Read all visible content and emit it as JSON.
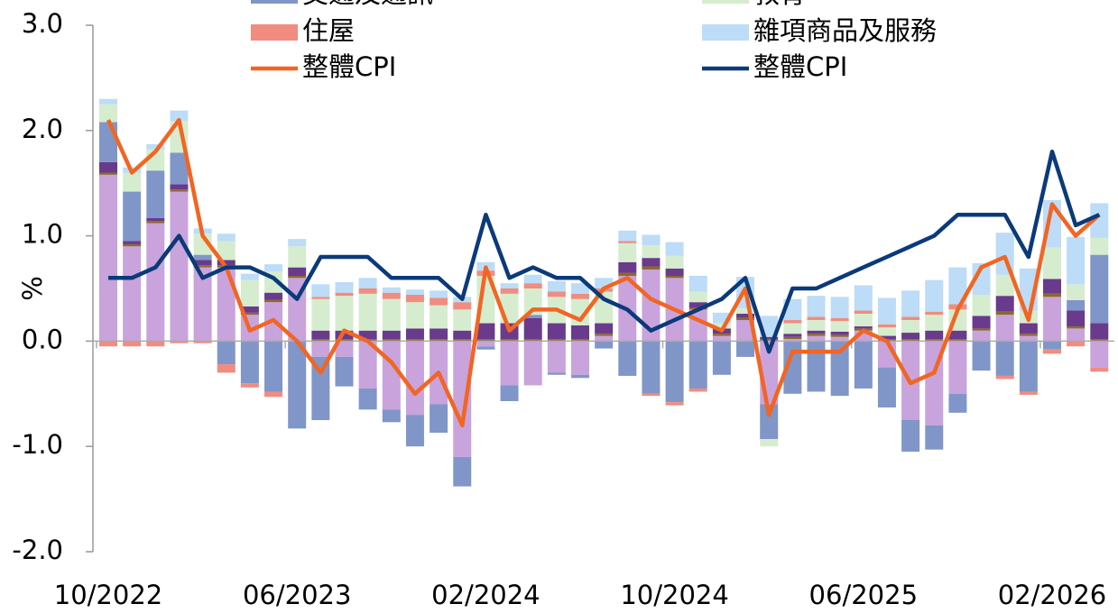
{
  "chart_data": {
    "type": "bar",
    "y_label": "%",
    "categories": [
      "10/2022",
      null,
      null,
      null,
      null,
      null,
      null,
      null,
      "06/2023",
      null,
      null,
      null,
      null,
      null,
      null,
      null,
      "02/2024",
      null,
      null,
      null,
      null,
      null,
      null,
      null,
      "10/2024",
      null,
      null,
      null,
      null,
      null,
      null,
      null,
      "06/2025",
      null,
      null,
      null,
      null,
      null,
      null,
      null,
      "02/2026",
      null,
      null
    ],
    "ylim": [
      -2,
      3
    ],
    "yticks": [
      {
        "value": -2,
        "label": "-2.0"
      },
      {
        "value": -1,
        "label": "-1.0"
      },
      {
        "value": 0,
        "label": "0.0"
      },
      {
        "value": 1,
        "label": "1.0"
      },
      {
        "value": 2,
        "label": "2.0"
      },
      {
        "value": 3,
        "label": "3.0"
      }
    ],
    "series": [
      {
        "color": "#c9a3dc",
        "values": [
          1.58,
          0.9,
          1.12,
          1.42,
          0.7,
          0.7,
          0.25,
          0.37,
          0.6,
          -0.15,
          -0.15,
          -0.45,
          -0.65,
          -0.7,
          -0.6,
          -1.1,
          -0.05,
          -0.42,
          -0.42,
          -0.3,
          -0.32,
          0.05,
          0.62,
          0.68,
          0.6,
          0.3,
          0.05,
          0.2,
          -0.6,
          0.02,
          0.05,
          0.04,
          0.1,
          -0.25,
          -0.75,
          -0.8,
          -0.5,
          0.1,
          0.25,
          0.05,
          0.42,
          0.12,
          -0.25
        ]
      },
      {
        "color": "#8b6a2b",
        "values": [
          0.02,
          0.02,
          0.02,
          0.02,
          0.02,
          0.02,
          0.02,
          0.02,
          0.02,
          0.02,
          0.02,
          0.02,
          0.02,
          0.02,
          0.02,
          0.02,
          0.02,
          0.02,
          0.02,
          0.02,
          0.02,
          0.02,
          0.03,
          0.03,
          0.02,
          0.02,
          0.02,
          0.02,
          0.02,
          0.02,
          0.02,
          0.02,
          0.02,
          0.02,
          0.02,
          0.02,
          0.02,
          0.02,
          0.03,
          0.02,
          0.03,
          0.02,
          0.02
        ]
      },
      {
        "color": "#6a3a8c",
        "values": [
          0.1,
          0.03,
          0.03,
          0.05,
          0.05,
          0.05,
          0.06,
          0.07,
          0.08,
          0.08,
          0.08,
          0.08,
          0.08,
          0.1,
          0.1,
          0.08,
          0.15,
          0.15,
          0.2,
          0.15,
          0.13,
          0.1,
          0.1,
          0.08,
          0.07,
          0.05,
          0.05,
          0.04,
          0.02,
          0.03,
          0.03,
          0.03,
          0.02,
          0.03,
          0.06,
          0.08,
          0.08,
          0.12,
          0.15,
          0.1,
          0.14,
          0.15,
          0.15
        ]
      },
      {
        "name": "交通及通訊",
        "color": "#8096c8",
        "values": [
          0.38,
          0.47,
          0.45,
          0.3,
          0.05,
          -0.22,
          -0.4,
          -0.48,
          -0.83,
          -0.6,
          -0.28,
          -0.2,
          -0.12,
          -0.3,
          -0.27,
          -0.28,
          -0.03,
          -0.15,
          0.03,
          -0.02,
          -0.03,
          -0.07,
          -0.33,
          -0.5,
          -0.58,
          -0.45,
          -0.32,
          -0.15,
          -0.33,
          -0.5,
          -0.48,
          -0.52,
          -0.45,
          -0.38,
          -0.3,
          -0.23,
          -0.18,
          -0.28,
          -0.33,
          -0.48,
          -0.08,
          0.1,
          0.65
        ]
      },
      {
        "name": "教育",
        "color": "#d5edce",
        "values": [
          0.17,
          0.18,
          0.2,
          0.3,
          0.2,
          0.18,
          0.25,
          0.2,
          0.2,
          0.3,
          0.33,
          0.35,
          0.3,
          0.25,
          0.22,
          0.2,
          0.45,
          0.28,
          0.25,
          0.25,
          0.25,
          0.3,
          0.18,
          0.12,
          0.12,
          0.1,
          0.05,
          0.05,
          -0.07,
          0.1,
          0.1,
          0.1,
          0.12,
          0.08,
          0.12,
          0.15,
          0.2,
          0.2,
          0.2,
          0.12,
          0.3,
          0.15,
          0.16
        ]
      },
      {
        "name": "住屋",
        "color": "#f08c80",
        "values": [
          -0.05,
          -0.05,
          -0.05,
          -0.02,
          -0.02,
          -0.08,
          -0.04,
          -0.05,
          0,
          0.02,
          0.03,
          0.05,
          0.06,
          0.07,
          0.07,
          0.07,
          0.05,
          0.05,
          0.05,
          0.05,
          0.05,
          0.03,
          0.02,
          -0.02,
          -0.03,
          -0.03,
          0,
          0,
          0,
          0.03,
          0.03,
          0.03,
          0.03,
          0.03,
          0.03,
          0.03,
          0.05,
          0,
          -0.03,
          -0.03,
          -0.04,
          -0.05,
          -0.04
        ]
      },
      {
        "name": "雜項商品及服務",
        "color": "#bcdcf7",
        "values": [
          0.05,
          0.05,
          0.05,
          0.1,
          0.05,
          0.07,
          0.06,
          0.07,
          0.07,
          0.12,
          0.1,
          0.1,
          0.05,
          0.05,
          0.07,
          0.05,
          0.08,
          0.05,
          0.08,
          0.1,
          0.1,
          0.1,
          0.1,
          0.1,
          0.13,
          0.15,
          0.1,
          0.3,
          0.2,
          0.2,
          0.2,
          0.2,
          0.24,
          0.25,
          0.25,
          0.3,
          0.35,
          0.3,
          0.4,
          0.4,
          0.45,
          0.45,
          0.33
        ]
      }
    ],
    "lines": [
      {
        "name": "整體CPI",
        "color": "#f26522",
        "values": [
          2.1,
          1.6,
          1.8,
          2.1,
          1.0,
          0.7,
          0.1,
          0.2,
          0.0,
          -0.3,
          0.1,
          0.0,
          -0.2,
          -0.5,
          -0.3,
          -0.8,
          0.7,
          0.1,
          0.3,
          0.3,
          0.2,
          0.5,
          0.6,
          0.4,
          0.3,
          0.2,
          0.1,
          0.5,
          -0.7,
          -0.1,
          -0.1,
          -0.1,
          0.1,
          0.0,
          -0.4,
          -0.3,
          0.3,
          0.7,
          0.8,
          0.2,
          1.3,
          1.0,
          1.2
        ]
      },
      {
        "name": "整體CPI",
        "color": "#0a3a7a",
        "values": [
          0.6,
          0.6,
          0.7,
          1.0,
          0.6,
          0.7,
          0.7,
          0.6,
          0.4,
          0.8,
          0.8,
          0.8,
          0.6,
          0.6,
          0.6,
          0.4,
          1.2,
          0.6,
          0.7,
          0.6,
          0.6,
          0.4,
          0.3,
          0.1,
          0.2,
          0.3,
          0.4,
          0.6,
          -0.1,
          0.5,
          0.5,
          0.6,
          0.7,
          0.8,
          0.9,
          1.0,
          1.2,
          1.2,
          1.2,
          0.8,
          1.8,
          1.1,
          1.2
        ]
      }
    ]
  }
}
